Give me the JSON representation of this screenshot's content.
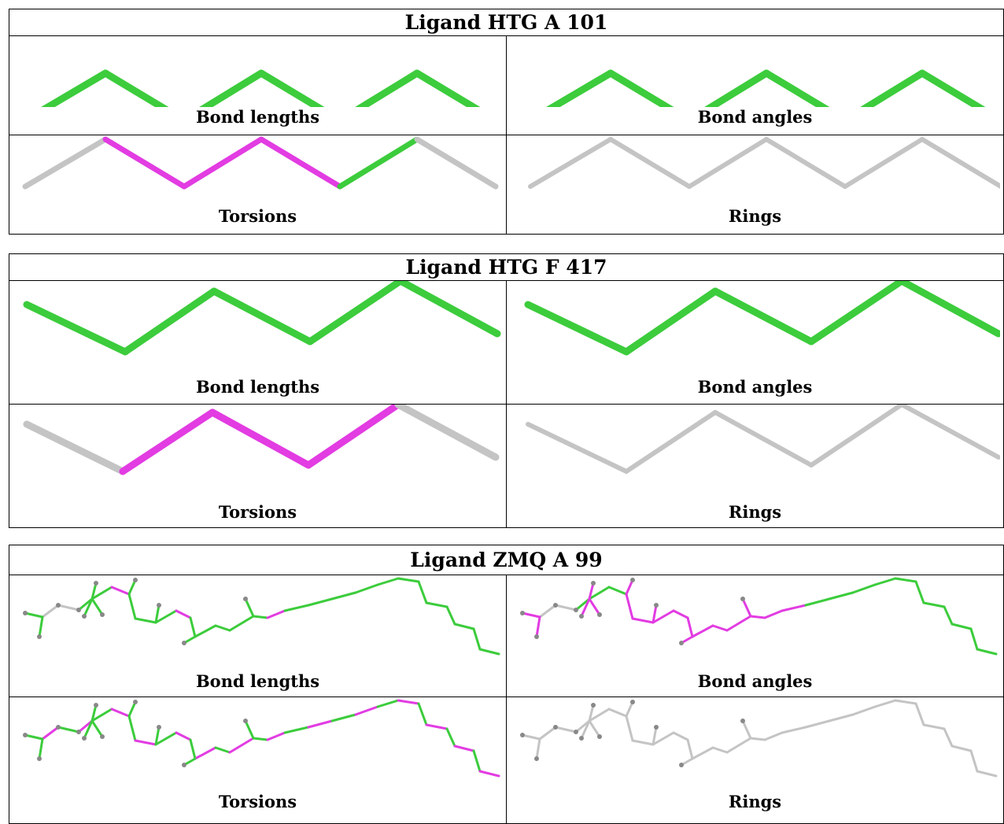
{
  "colors": {
    "pass": "#3ccc3c",
    "outlier": "#e23ce2",
    "none": "#c4c4c4",
    "atom": "#888888"
  },
  "ligands": [
    {
      "title": "Ligand HTG A 101",
      "shape": "zigzag_up",
      "panels": [
        {
          "caption": "Bond lengths",
          "coloring": [
            "pass",
            "pass",
            "pass",
            "pass",
            "pass",
            "pass"
          ]
        },
        {
          "caption": "Bond angles",
          "coloring": [
            "pass",
            "pass",
            "pass",
            "pass",
            "pass",
            "pass"
          ]
        },
        {
          "caption": "Torsions",
          "coloring": [
            "none",
            "outlier",
            "outlier",
            "outlier",
            "pass",
            "none"
          ]
        },
        {
          "caption": "Rings",
          "coloring": [
            "none",
            "none",
            "none",
            "none",
            "none",
            "none"
          ]
        }
      ]
    },
    {
      "title": "Ligand HTG F 417",
      "shape": "zigzag_down",
      "panels": [
        {
          "caption": "Bond lengths",
          "coloring": [
            "pass",
            "pass",
            "pass",
            "pass",
            "pass"
          ]
        },
        {
          "caption": "Bond angles",
          "coloring": [
            "pass",
            "pass",
            "pass",
            "pass",
            "pass"
          ]
        },
        {
          "caption": "Torsions",
          "coloring": [
            "none",
            "outlier",
            "outlier",
            "outlier",
            "none"
          ]
        },
        {
          "caption": "Rings",
          "coloring": [
            "none",
            "none",
            "none",
            "none",
            "none"
          ]
        }
      ]
    },
    {
      "title": "Ligand ZMQ A 99",
      "shape": "chain",
      "panels": [
        {
          "caption": "Bond lengths",
          "coloring": "lengths"
        },
        {
          "caption": "Bond angles",
          "coloring": "angles"
        },
        {
          "caption": "Torsions",
          "coloring": "torsions"
        },
        {
          "caption": "Rings",
          "coloring": "rings"
        }
      ]
    }
  ]
}
